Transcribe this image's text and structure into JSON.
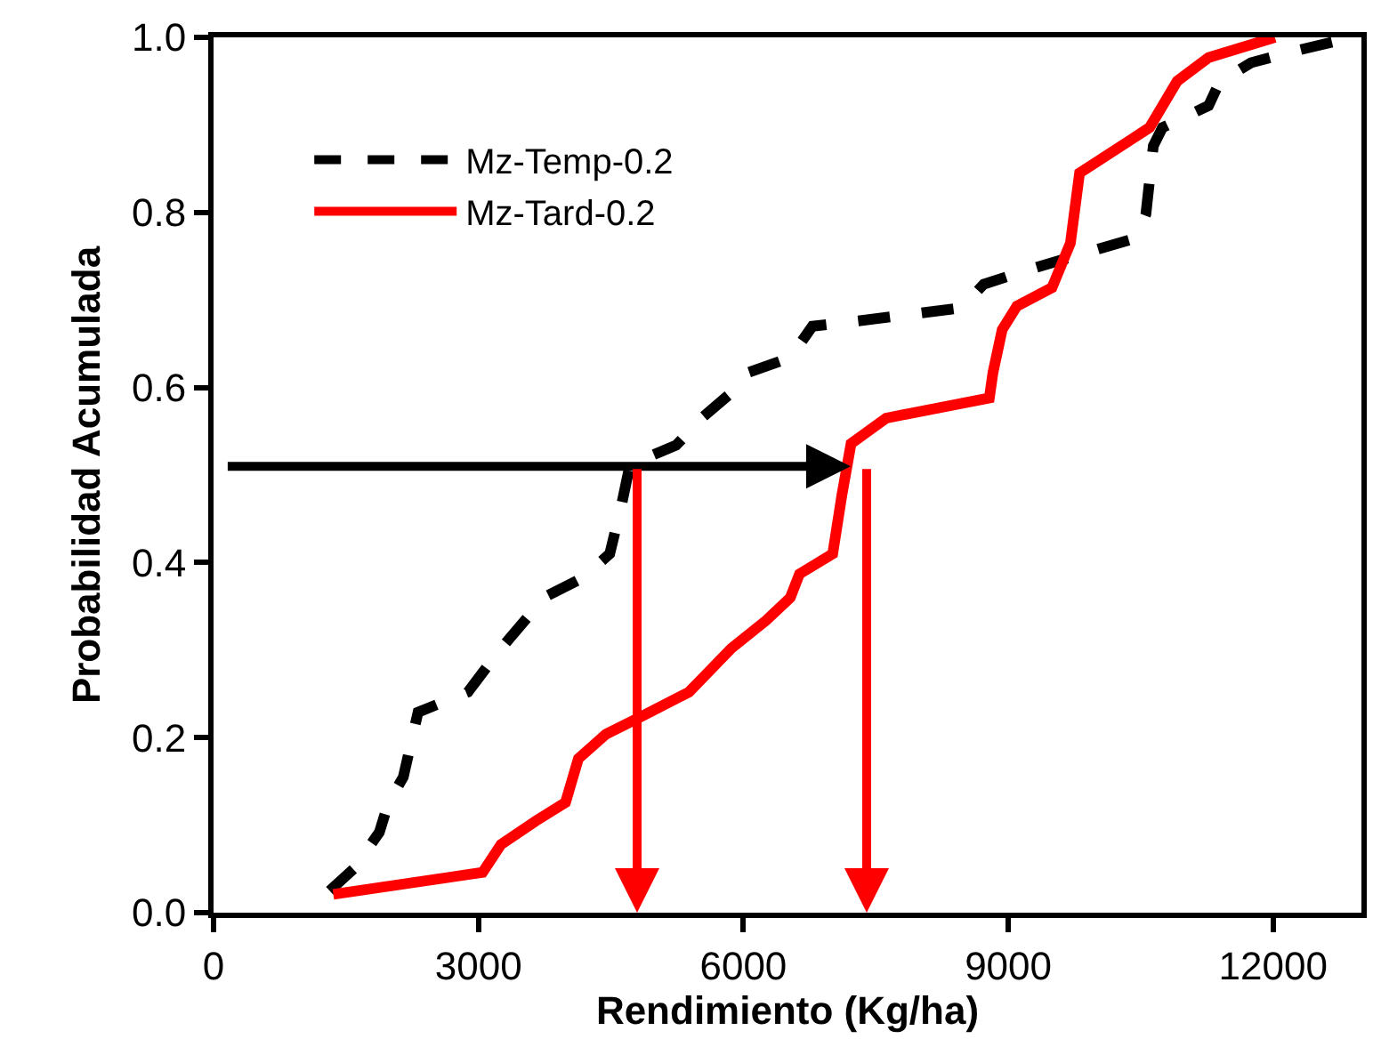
{
  "chart_data": {
    "type": "line",
    "xlabel": "Rendimiento (Kg/ha)",
    "ylabel": "Probabilidad Acumulada",
    "xlim": [
      0,
      13000
    ],
    "xticks": [
      0,
      3000,
      6000,
      9000,
      12000
    ],
    "ylim": [
      0,
      1.0
    ],
    "yticks": [
      {
        "value": 0,
        "label": "0.0"
      },
      0.2,
      0.4,
      0.6,
      0.8,
      {
        "value": 1.0,
        "label": "1.0"
      }
    ],
    "legend": "top left",
    "marker": "none",
    "series": [
      {
        "name": "Mz-Temp-0.2",
        "color": "#000000",
        "line_style": "dashed",
        "x": [
          1315,
          1586,
          1878,
          1982,
          2149,
          2316,
          2880,
          3256,
          3756,
          4174,
          4487,
          4612,
          4716,
          5238,
          5551,
          5968,
          6052,
          6532,
          6782,
          7304,
          8472,
          8723,
          9245,
          10080,
          10455,
          10559,
          10643,
          10747,
          11269,
          11394,
          11749,
          12270,
          12900
        ],
        "values": [
          0.025,
          0.05,
          0.092,
          0.126,
          0.155,
          0.229,
          0.252,
          0.302,
          0.361,
          0.382,
          0.41,
          0.462,
          0.512,
          0.534,
          0.567,
          0.603,
          0.617,
          0.634,
          0.67,
          0.676,
          0.691,
          0.718,
          0.735,
          0.76,
          0.771,
          0.798,
          0.876,
          0.897,
          0.922,
          0.949,
          0.971,
          0.985,
          1.0
        ]
      },
      {
        "name": "Mz-Tard-0.2",
        "color": "#ff0000",
        "line_style": "solid",
        "x": [
          1356,
          3047,
          3256,
          3652,
          3986,
          4132,
          4445,
          4862,
          5384,
          5864,
          6260,
          6532,
          6636,
          7012,
          7116,
          7220,
          7617,
          8786,
          8827,
          8931,
          9098,
          9495,
          9704,
          9808,
          10601,
          10914,
          11269,
          12020
        ],
        "values": [
          0.021,
          0.046,
          0.078,
          0.105,
          0.126,
          0.176,
          0.204,
          0.225,
          0.252,
          0.302,
          0.334,
          0.36,
          0.387,
          0.41,
          0.477,
          0.536,
          0.565,
          0.588,
          0.617,
          0.666,
          0.693,
          0.714,
          0.765,
          0.845,
          0.897,
          0.95,
          0.977,
          1.0
        ]
      }
    ]
  }
}
